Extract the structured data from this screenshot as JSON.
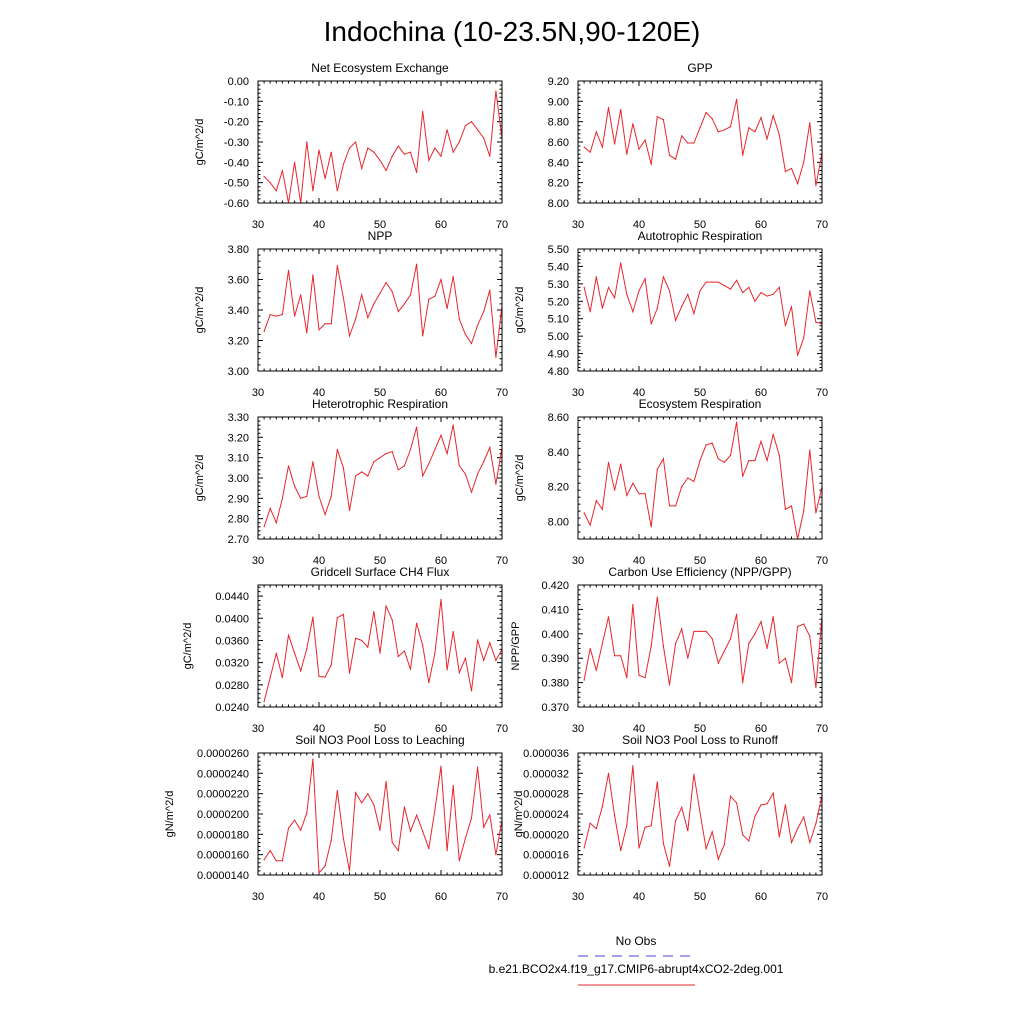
{
  "figure_title": "Indochina (10-23.5N,90-120E)",
  "legend": [
    {
      "label": "No Obs",
      "color": "#4444cc",
      "dash": true
    },
    {
      "label": "b.e21.BCO2x4.f19_g17.CMIP6-abrupt4xCO2-2deg.001",
      "color": "#e8262b",
      "dash": false
    }
  ],
  "line_color": "#e8262b",
  "chart_data": [
    {
      "type": "line",
      "title": "Net Ecosystem Exchange",
      "xlabel": "",
      "ylabel": "gC/m^2/d",
      "xlim": [
        30,
        70
      ],
      "ylim": [
        -0.6,
        0.0
      ],
      "xticks": [
        30,
        40,
        50,
        60,
        70
      ],
      "yticks": [
        -0.6,
        -0.5,
        -0.4,
        -0.3,
        -0.2,
        -0.1,
        0.0
      ],
      "ytick_labels": [
        "-0.60",
        "-0.50",
        "-0.40",
        "-0.30",
        "-0.20",
        "-0.10",
        "0.00"
      ],
      "x": [
        31,
        32,
        33,
        34,
        35,
        36,
        37,
        38,
        39,
        40,
        41,
        42,
        43,
        44,
        45,
        46,
        47,
        48,
        49,
        50,
        51,
        52,
        53,
        54,
        55,
        56,
        57,
        58,
        59,
        60,
        61,
        62,
        63,
        64,
        65,
        66,
        67,
        68,
        69,
        70
      ],
      "values": [
        -0.47,
        -0.5,
        -0.54,
        -0.44,
        -0.6,
        -0.4,
        -0.6,
        -0.3,
        -0.54,
        -0.34,
        -0.48,
        -0.35,
        -0.54,
        -0.41,
        -0.33,
        -0.3,
        -0.43,
        -0.33,
        -0.35,
        -0.39,
        -0.44,
        -0.37,
        -0.32,
        -0.36,
        -0.35,
        -0.45,
        -0.15,
        -0.39,
        -0.33,
        -0.37,
        -0.24,
        -0.35,
        -0.3,
        -0.22,
        -0.2,
        -0.24,
        -0.28,
        -0.37,
        -0.05,
        -0.28
      ]
    },
    {
      "type": "line",
      "title": "GPP",
      "xlabel": "",
      "ylabel": "",
      "xlim": [
        30,
        70
      ],
      "ylim": [
        8.0,
        9.2
      ],
      "xticks": [
        30,
        40,
        50,
        60,
        70
      ],
      "yticks": [
        8.0,
        8.2,
        8.4,
        8.6,
        8.8,
        9.0,
        9.2
      ],
      "ytick_labels": [
        "8.00",
        "8.20",
        "8.40",
        "8.60",
        "8.80",
        "9.00",
        "9.20"
      ],
      "x": [
        31,
        32,
        33,
        34,
        35,
        36,
        37,
        38,
        39,
        40,
        41,
        42,
        43,
        44,
        45,
        46,
        47,
        48,
        49,
        50,
        51,
        52,
        53,
        54,
        55,
        56,
        57,
        58,
        59,
        60,
        61,
        62,
        63,
        64,
        65,
        66,
        67,
        68,
        69,
        70
      ],
      "values": [
        8.55,
        8.5,
        8.7,
        8.55,
        8.94,
        8.58,
        8.92,
        8.48,
        8.78,
        8.53,
        8.62,
        8.38,
        8.85,
        8.82,
        8.47,
        8.43,
        8.66,
        8.59,
        8.59,
        8.74,
        8.89,
        8.83,
        8.7,
        8.72,
        8.75,
        9.02,
        8.47,
        8.74,
        8.7,
        8.84,
        8.63,
        8.86,
        8.67,
        8.31,
        8.34,
        8.19,
        8.4,
        8.79,
        8.17,
        8.49
      ]
    },
    {
      "type": "line",
      "title": "NPP",
      "xlabel": "",
      "ylabel": "gC/m^2/d",
      "xlim": [
        30,
        70
      ],
      "ylim": [
        3.0,
        3.8
      ],
      "xticks": [
        30,
        40,
        50,
        60,
        70
      ],
      "yticks": [
        3.0,
        3.2,
        3.4,
        3.6,
        3.8
      ],
      "ytick_labels": [
        "3.00",
        "3.20",
        "3.40",
        "3.60",
        "3.80"
      ],
      "x": [
        31,
        32,
        33,
        34,
        35,
        36,
        37,
        38,
        39,
        40,
        41,
        42,
        43,
        44,
        45,
        46,
        47,
        48,
        49,
        50,
        51,
        52,
        53,
        54,
        55,
        56,
        57,
        58,
        59,
        60,
        61,
        62,
        63,
        64,
        65,
        66,
        67,
        68,
        69,
        70
      ],
      "values": [
        3.26,
        3.37,
        3.36,
        3.37,
        3.66,
        3.36,
        3.5,
        3.25,
        3.63,
        3.27,
        3.31,
        3.31,
        3.69,
        3.48,
        3.23,
        3.34,
        3.5,
        3.35,
        3.44,
        3.51,
        3.58,
        3.52,
        3.39,
        3.44,
        3.5,
        3.7,
        3.23,
        3.47,
        3.49,
        3.6,
        3.41,
        3.62,
        3.34,
        3.24,
        3.18,
        3.3,
        3.39,
        3.53,
        3.09,
        3.43
      ]
    },
    {
      "type": "line",
      "title": "Autotrophic Respiration",
      "xlabel": "",
      "ylabel": "gC/m^2/d",
      "xlim": [
        30,
        70
      ],
      "ylim": [
        4.8,
        5.5
      ],
      "xticks": [
        30,
        40,
        50,
        60,
        70
      ],
      "yticks": [
        4.8,
        4.9,
        5.0,
        5.1,
        5.2,
        5.3,
        5.4,
        5.5
      ],
      "ytick_labels": [
        "4.80",
        "4.90",
        "5.00",
        "5.10",
        "5.20",
        "5.30",
        "5.40",
        "5.50"
      ],
      "x": [
        31,
        32,
        33,
        34,
        35,
        36,
        37,
        38,
        39,
        40,
        41,
        42,
        43,
        44,
        45,
        46,
        47,
        48,
        49,
        50,
        51,
        52,
        53,
        54,
        55,
        56,
        57,
        58,
        59,
        60,
        61,
        62,
        63,
        64,
        65,
        66,
        67,
        68,
        69,
        70
      ],
      "values": [
        5.28,
        5.14,
        5.34,
        5.16,
        5.28,
        5.22,
        5.42,
        5.24,
        5.14,
        5.26,
        5.33,
        5.07,
        5.16,
        5.34,
        5.26,
        5.09,
        5.17,
        5.24,
        5.13,
        5.26,
        5.31,
        5.31,
        5.31,
        5.29,
        5.27,
        5.32,
        5.25,
        5.28,
        5.2,
        5.25,
        5.23,
        5.24,
        5.28,
        5.06,
        5.17,
        4.89,
        4.99,
        5.26,
        5.08,
        5.07
      ]
    },
    {
      "type": "line",
      "title": "Heterotrophic Respiration",
      "xlabel": "",
      "ylabel": "gC/m^2/d",
      "xlim": [
        30,
        70
      ],
      "ylim": [
        2.7,
        3.3
      ],
      "xticks": [
        30,
        40,
        50,
        60,
        70
      ],
      "yticks": [
        2.7,
        2.8,
        2.9,
        3.0,
        3.1,
        3.2,
        3.3
      ],
      "ytick_labels": [
        "2.70",
        "2.80",
        "2.90",
        "3.00",
        "3.10",
        "3.20",
        "3.30"
      ],
      "x": [
        31,
        32,
        33,
        34,
        35,
        36,
        37,
        38,
        39,
        40,
        41,
        42,
        43,
        44,
        45,
        46,
        47,
        48,
        49,
        50,
        51,
        52,
        53,
        54,
        55,
        56,
        57,
        58,
        59,
        60,
        61,
        62,
        63,
        64,
        65,
        66,
        67,
        68,
        69,
        70
      ],
      "values": [
        2.76,
        2.85,
        2.78,
        2.9,
        3.06,
        2.96,
        2.9,
        2.91,
        3.08,
        2.91,
        2.82,
        2.91,
        3.14,
        3.05,
        2.84,
        3.01,
        3.03,
        3.01,
        3.08,
        3.1,
        3.12,
        3.13,
        3.04,
        3.06,
        3.14,
        3.25,
        3.01,
        3.07,
        3.14,
        3.21,
        3.12,
        3.26,
        3.06,
        3.02,
        2.93,
        3.02,
        3.08,
        3.15,
        2.97,
        3.15
      ]
    },
    {
      "type": "line",
      "title": "Ecosystem Respiration",
      "xlabel": "",
      "ylabel": "gC/m^2/d",
      "xlim": [
        30,
        70
      ],
      "ylim": [
        7.9,
        8.6
      ],
      "xticks": [
        30,
        40,
        50,
        60,
        70
      ],
      "yticks": [
        8.0,
        8.2,
        8.4,
        8.6
      ],
      "ytick_labels": [
        "8.00",
        "8.20",
        "8.40",
        "8.60"
      ],
      "x": [
        31,
        32,
        33,
        34,
        35,
        36,
        37,
        38,
        39,
        40,
        41,
        42,
        43,
        44,
        45,
        46,
        47,
        48,
        49,
        50,
        51,
        52,
        53,
        54,
        55,
        56,
        57,
        58,
        59,
        60,
        61,
        62,
        63,
        64,
        65,
        66,
        67,
        68,
        69,
        70
      ],
      "values": [
        8.05,
        7.98,
        8.12,
        8.07,
        8.34,
        8.18,
        8.33,
        8.15,
        8.22,
        8.16,
        8.16,
        7.97,
        8.3,
        8.36,
        8.09,
        8.09,
        8.2,
        8.25,
        8.23,
        8.35,
        8.44,
        8.45,
        8.36,
        8.34,
        8.38,
        8.57,
        8.26,
        8.35,
        8.35,
        8.46,
        8.35,
        8.5,
        8.38,
        8.07,
        8.09,
        7.9,
        8.06,
        8.41,
        8.05,
        8.2
      ]
    },
    {
      "type": "line",
      "title": "Gridcell Surface CH4 Flux",
      "xlabel": "",
      "ylabel": "gC/m^2/d",
      "xlim": [
        30,
        70
      ],
      "ylim": [
        0.024,
        0.046
      ],
      "xticks": [
        30,
        40,
        50,
        60,
        70
      ],
      "yticks": [
        0.024,
        0.028,
        0.032,
        0.036,
        0.04,
        0.044
      ],
      "ytick_labels": [
        "0.0240",
        "0.0280",
        "0.0320",
        "0.0360",
        "0.0400",
        "0.0440"
      ],
      "x": [
        31,
        32,
        33,
        34,
        35,
        36,
        37,
        38,
        39,
        40,
        41,
        42,
        43,
        44,
        45,
        46,
        47,
        48,
        49,
        50,
        51,
        52,
        53,
        54,
        55,
        56,
        57,
        58,
        59,
        60,
        61,
        62,
        63,
        64,
        65,
        66,
        67,
        68,
        69,
        70
      ],
      "values": [
        0.025,
        0.0293,
        0.0337,
        0.0293,
        0.037,
        0.0337,
        0.0305,
        0.0345,
        0.0402,
        0.0295,
        0.0294,
        0.0316,
        0.0401,
        0.0407,
        0.0301,
        0.0364,
        0.036,
        0.0348,
        0.0412,
        0.0337,
        0.0422,
        0.0397,
        0.0331,
        0.0341,
        0.0308,
        0.0391,
        0.0351,
        0.0284,
        0.0337,
        0.0434,
        0.0307,
        0.0376,
        0.0302,
        0.0328,
        0.0269,
        0.0361,
        0.0324,
        0.0356,
        0.0324,
        0.0344
      ]
    },
    {
      "type": "line",
      "title": "Carbon Use Efficiency (NPP/GPP)",
      "xlabel": "",
      "ylabel": "NPP/GPP",
      "xlim": [
        30,
        70
      ],
      "ylim": [
        0.37,
        0.42
      ],
      "xticks": [
        30,
        40,
        50,
        60,
        70
      ],
      "yticks": [
        0.37,
        0.38,
        0.39,
        0.4,
        0.41,
        0.42
      ],
      "ytick_labels": [
        "0.370",
        "0.380",
        "0.390",
        "0.400",
        "0.410",
        "0.420"
      ],
      "x": [
        31,
        32,
        33,
        34,
        35,
        36,
        37,
        38,
        39,
        40,
        41,
        42,
        43,
        44,
        45,
        46,
        47,
        48,
        49,
        50,
        51,
        52,
        53,
        54,
        55,
        56,
        57,
        58,
        59,
        60,
        61,
        62,
        63,
        64,
        65,
        66,
        67,
        68,
        69,
        70
      ],
      "values": [
        0.381,
        0.394,
        0.385,
        0.396,
        0.407,
        0.391,
        0.391,
        0.382,
        0.412,
        0.383,
        0.382,
        0.395,
        0.415,
        0.395,
        0.379,
        0.396,
        0.402,
        0.39,
        0.401,
        0.401,
        0.401,
        0.398,
        0.388,
        0.393,
        0.398,
        0.408,
        0.38,
        0.396,
        0.4,
        0.405,
        0.394,
        0.407,
        0.388,
        0.39,
        0.38,
        0.403,
        0.404,
        0.399,
        0.378,
        0.407
      ]
    },
    {
      "type": "line",
      "title": "Soil NO3 Pool Loss to Leaching",
      "xlabel": "",
      "ylabel": "gN/m^2/d",
      "xlim": [
        30,
        70
      ],
      "ylim": [
        1.4e-05,
        2.6e-05
      ],
      "xticks": [
        30,
        40,
        50,
        60,
        70
      ],
      "yticks": [
        1.4e-05,
        1.6e-05,
        1.8e-05,
        2e-05,
        2.2e-05,
        2.4e-05,
        2.6e-05
      ],
      "ytick_labels": [
        "0.0000140",
        "0.0000160",
        "0.0000180",
        "0.0000200",
        "0.0000220",
        "0.0000240",
        "0.0000260"
      ],
      "x": [
        31,
        32,
        33,
        34,
        35,
        36,
        37,
        38,
        39,
        40,
        41,
        42,
        43,
        44,
        45,
        46,
        47,
        48,
        49,
        50,
        51,
        52,
        53,
        54,
        55,
        56,
        57,
        58,
        59,
        60,
        61,
        62,
        63,
        64,
        65,
        66,
        67,
        68,
        69,
        70
      ],
      "values": [
        1.55e-05,
        1.64e-05,
        1.54e-05,
        1.54e-05,
        1.86e-05,
        1.94e-05,
        1.84e-05,
        2.01e-05,
        2.54e-05,
        1.42e-05,
        1.49e-05,
        1.74e-05,
        2.23e-05,
        1.76e-05,
        1.44e-05,
        2.21e-05,
        2.11e-05,
        2.2e-05,
        2.09e-05,
        1.84e-05,
        2.32e-05,
        1.72e-05,
        1.64e-05,
        2.07e-05,
        1.83e-05,
        1.99e-05,
        1.83e-05,
        1.66e-05,
        2.04e-05,
        2.47e-05,
        1.64e-05,
        2.28e-05,
        1.54e-05,
        1.76e-05,
        1.96e-05,
        2.46e-05,
        1.87e-05,
        1.99e-05,
        1.6e-05,
        1.94e-05
      ]
    },
    {
      "type": "line",
      "title": "Soil NO3 Pool Loss to Runoff",
      "xlabel": "",
      "ylabel": "gN/m^2/d",
      "xlim": [
        30,
        70
      ],
      "ylim": [
        1.2e-05,
        3.6e-05
      ],
      "xticks": [
        30,
        40,
        50,
        60,
        70
      ],
      "yticks": [
        1.2e-05,
        1.6e-05,
        2e-05,
        2.4e-05,
        2.8e-05,
        3.2e-05,
        3.6e-05
      ],
      "ytick_labels": [
        "0.000012",
        "0.000016",
        "0.000020",
        "0.000024",
        "0.000028",
        "0.000032",
        "0.000036"
      ],
      "x": [
        31,
        32,
        33,
        34,
        35,
        36,
        37,
        38,
        39,
        40,
        41,
        42,
        43,
        44,
        45,
        46,
        47,
        48,
        49,
        50,
        51,
        52,
        53,
        54,
        55,
        56,
        57,
        58,
        59,
        60,
        61,
        62,
        63,
        64,
        65,
        66,
        67,
        68,
        69,
        70
      ],
      "values": [
        1.73e-05,
        2.22e-05,
        2.11e-05,
        2.55e-05,
        3.2e-05,
        2.37e-05,
        1.68e-05,
        2.18e-05,
        3.35e-05,
        1.73e-05,
        2.14e-05,
        2.17e-05,
        3.03e-05,
        1.82e-05,
        1.37e-05,
        2.27e-05,
        2.53e-05,
        2.07e-05,
        3.18e-05,
        2.43e-05,
        1.72e-05,
        2.05e-05,
        1.51e-05,
        1.8e-05,
        2.75e-05,
        2.62e-05,
        1.99e-05,
        1.87e-05,
        2.35e-05,
        2.58e-05,
        2.6e-05,
        2.81e-05,
        1.95e-05,
        2.58e-05,
        1.84e-05,
        2.11e-05,
        2.34e-05,
        1.84e-05,
        2.21e-05,
        2.77e-05
      ]
    }
  ]
}
